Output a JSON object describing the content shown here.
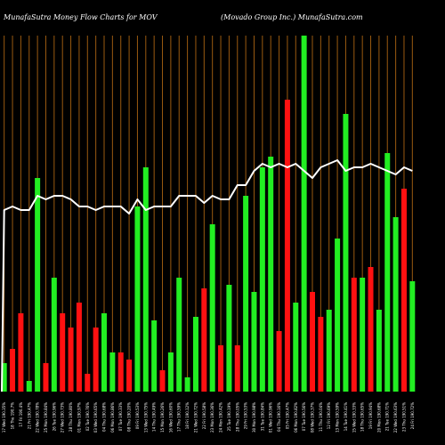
{
  "header": {
    "left": "MunafaSutra  Money  Flow  Charts for MOV",
    "right": "(Movado   Group Inc.) MunafaSutra.com"
  },
  "chart_data": {
    "type": "bar",
    "colors": {
      "up": "#22ee22",
      "down": "#ff1111",
      "grid": "#9a5a10",
      "line": "#ffffff",
      "background": "#000000"
    },
    "categories": [
      "17 Wed 190.35%",
      "18 Thu 190.7%",
      "17 Fri 190.4%",
      "21 Fri 190.47%",
      "22 Wed 190.78%",
      "25 Mon 190.84%",
      "26 Tue 190.96%",
      "27 Wed 190.73%",
      "28 Thu 190.80%",
      "01 Mon 190.97%",
      "02 Tue 190.76%",
      "03 Wed 190.65%",
      "04 Thu 190.68%",
      "06 Mon 190.86%",
      "07 Tue 190.33%",
      "08 Thu 190.20%",
      "09 Fri 190.53%",
      "13 Wed 190.75%",
      "14 Thu 190.49%",
      "15 Mon 190.26%",
      "16 Wed 190.60%",
      "17 Thu 190.59%",
      "18 Fri 190.12%",
      "21 Wed 190.72%",
      "22 Fri 190.58%",
      "23 Mon 190.36%",
      "24 Mon 190.42%",
      "25 Tue 190.19%",
      "28 Thu 190.05%",
      "29 Fri 190.53%",
      "30 Mon 190.98%",
      "31 Tue 190.84%",
      "01 Wed 190.96%",
      "04 Thu 190.16%",
      "05 Fri 190.47%",
      "06 Mon 190.82%",
      "07 Tue 190.56%",
      "08 Wed 190.37%",
      "11 Thu 190.04%",
      "12 Fri 190.69%",
      "13 Mon 190.59%",
      "14 Tue 190.41%",
      "15 Wed 190.33%",
      "18 Thu 190.65%",
      "19 Fri 190.94%",
      "20 Mon 190.68%",
      "21 Tue 190.71%",
      "22 Wed 190.63%",
      "23 Thu 190.51%",
      "24 Fri 190.72%"
    ],
    "series": [
      {
        "values": [
          8,
          12,
          22,
          3,
          60,
          8,
          32,
          22,
          18,
          25,
          5,
          18,
          22,
          11,
          11,
          9,
          52,
          63,
          20,
          6,
          11,
          32,
          4,
          21,
          29,
          47,
          13,
          30,
          13,
          55,
          28,
          63,
          66,
          17,
          82,
          25,
          100,
          28,
          21,
          23,
          43,
          78,
          32,
          32,
          35,
          23,
          67,
          49,
          57,
          31
        ],
        "directions": [
          "up",
          "down",
          "down",
          "up",
          "up",
          "down",
          "up",
          "down",
          "down",
          "down",
          "down",
          "down",
          "up",
          "up",
          "down",
          "down",
          "up",
          "up",
          "up",
          "down",
          "up",
          "up",
          "up",
          "up",
          "down",
          "up",
          "down",
          "up",
          "down",
          "up",
          "up",
          "up",
          "up",
          "down",
          "down",
          "up",
          "up",
          "down",
          "down",
          "up",
          "up",
          "up",
          "down",
          "up",
          "down",
          "up",
          "up",
          "up",
          "down",
          "up"
        ]
      },
      {
        "values": [
          51,
          52,
          51,
          51,
          55,
          54,
          55,
          55,
          54,
          52,
          52,
          51,
          52,
          52,
          52,
          50,
          54,
          51,
          52,
          52,
          52,
          55,
          55,
          55,
          53,
          55,
          54,
          54,
          58,
          58,
          62,
          64,
          63,
          64,
          63,
          64,
          62,
          60,
          63,
          64,
          65,
          62,
          63,
          63,
          64,
          63,
          62,
          61,
          63,
          62
        ]
      }
    ],
    "ylim": [
      0,
      100
    ]
  }
}
